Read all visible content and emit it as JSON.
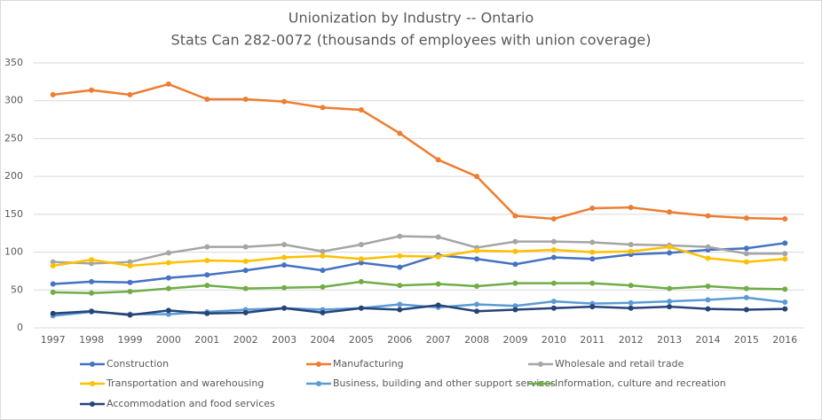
{
  "chart_data": {
    "type": "line",
    "title": "Unionization by Industry -- Ontario",
    "subtitle": "Stats Can 282-0072 (thousands of employees with union coverage)",
    "categories": [
      "1997",
      "1998",
      "1999",
      "2000",
      "2001",
      "2002",
      "2003",
      "2004",
      "2005",
      "2006",
      "2007",
      "2008",
      "2009",
      "2010",
      "2011",
      "2012",
      "2013",
      "2014",
      "2015",
      "2016"
    ],
    "ylim": [
      0,
      350
    ],
    "yticks": [
      0,
      50,
      100,
      150,
      200,
      250,
      300,
      350
    ],
    "grid": true,
    "series": [
      {
        "name": "Construction",
        "color": "#4472c4",
        "values": [
          58,
          61,
          60,
          66,
          70,
          76,
          83,
          76,
          86,
          80,
          96,
          91,
          84,
          93,
          91,
          97,
          99,
          103,
          105,
          112
        ]
      },
      {
        "name": "Manufacturing",
        "color": "#ed7d31",
        "values": [
          308,
          314,
          308,
          322,
          302,
          302,
          299,
          291,
          288,
          257,
          222,
          200,
          148,
          144,
          158,
          159,
          153,
          148,
          145,
          144
        ]
      },
      {
        "name": "Wholesale and retail trade",
        "color": "#a5a5a5",
        "values": [
          87,
          85,
          87,
          99,
          107,
          107,
          110,
          101,
          110,
          121,
          120,
          106,
          114,
          114,
          113,
          110,
          109,
          107,
          98,
          98
        ]
      },
      {
        "name": "Transportation and warehousing",
        "color": "#ffc000",
        "values": [
          82,
          90,
          82,
          86,
          89,
          88,
          93,
          95,
          91,
          95,
          94,
          102,
          101,
          103,
          100,
          101,
          107,
          92,
          87,
          91
        ]
      },
      {
        "name": "Business, building and other support services",
        "color": "#5b9bd5",
        "values": [
          16,
          21,
          18,
          18,
          21,
          24,
          26,
          24,
          26,
          31,
          27,
          31,
          29,
          35,
          32,
          33,
          35,
          37,
          40,
          34
        ]
      },
      {
        "name": "Information, culture and recreation",
        "color": "#70ad47",
        "values": [
          47,
          46,
          48,
          52,
          56,
          52,
          53,
          54,
          61,
          56,
          58,
          55,
          59,
          59,
          59,
          56,
          52,
          55,
          52,
          51
        ]
      },
      {
        "name": "Accommodation and food services",
        "color": "#264478",
        "values": [
          19,
          22,
          17,
          23,
          19,
          20,
          26,
          20,
          26,
          24,
          30,
          22,
          24,
          26,
          28,
          26,
          28,
          25,
          24,
          25
        ]
      }
    ]
  }
}
